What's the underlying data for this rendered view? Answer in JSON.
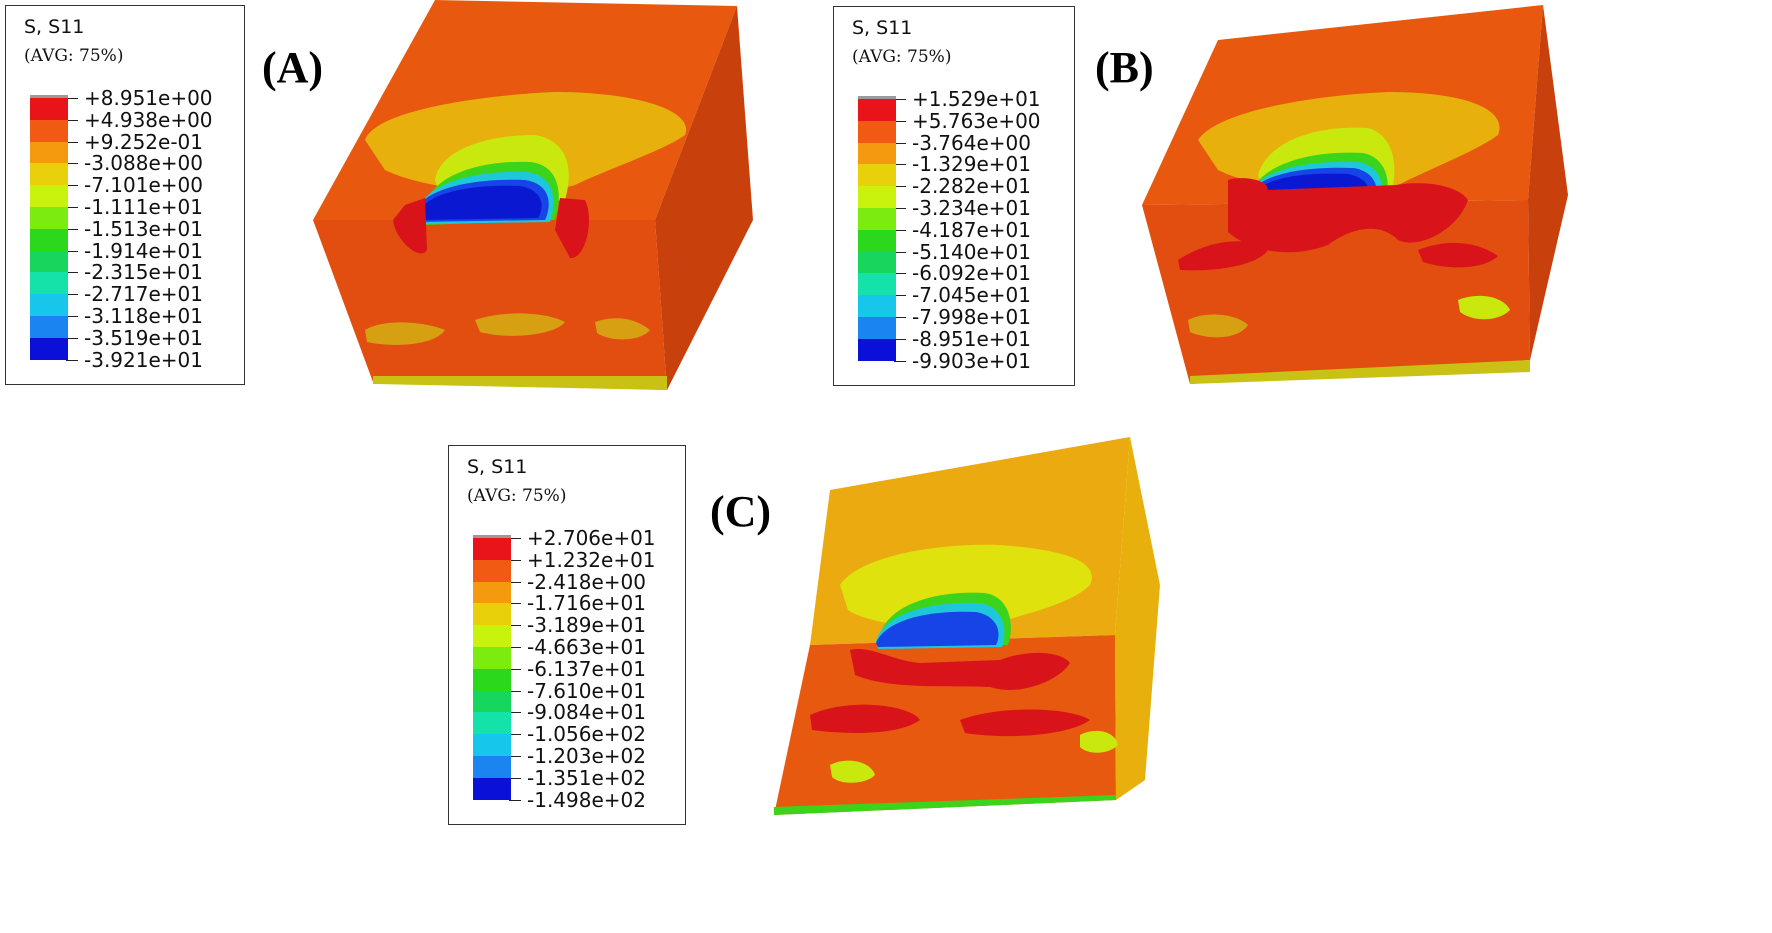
{
  "panels": [
    {
      "id": "A",
      "label": "(A)",
      "legend": {
        "title": "S, S11",
        "subtitle": "(AVG: 75%)",
        "values": [
          "+8.951e+00",
          "+4.938e+00",
          "+9.252e-01",
          "-3.088e+00",
          "-7.101e+00",
          "-1.111e+01",
          "-1.513e+01",
          "-1.914e+01",
          "-2.315e+01",
          "-2.717e+01",
          "-3.118e+01",
          "-3.519e+01",
          "-3.921e+01"
        ],
        "colors": [
          "#E8141A",
          "#F05A12",
          "#F59A0E",
          "#E8D10A",
          "#C9F20C",
          "#7CEB10",
          "#2CD81C",
          "#17D65E",
          "#14E2A9",
          "#17C6EB",
          "#1A84F0",
          "#1A3DEF",
          "#0B10D9"
        ]
      }
    },
    {
      "id": "B",
      "label": "(B)",
      "legend": {
        "title": "S, S11",
        "subtitle": "(AVG: 75%)",
        "values": [
          "+1.529e+01",
          "+5.763e+00",
          "-3.764e+00",
          "-1.329e+01",
          "-2.282e+01",
          "-3.234e+01",
          "-4.187e+01",
          "-5.140e+01",
          "-6.092e+01",
          "-7.045e+01",
          "-7.998e+01",
          "-8.951e+01",
          "-9.903e+01"
        ],
        "colors": [
          "#E8141A",
          "#F05A12",
          "#F59A0E",
          "#E8D10A",
          "#C9F20C",
          "#7CEB10",
          "#2CD81C",
          "#17D65E",
          "#14E2A9",
          "#17C6EB",
          "#1A84F0",
          "#1A3DEF",
          "#0B10D9"
        ]
      }
    },
    {
      "id": "C",
      "label": "(C)",
      "legend": {
        "title": "S, S11",
        "subtitle": "(AVG: 75%)",
        "values": [
          "+2.706e+01",
          "+1.232e+01",
          "-2.418e+00",
          "-1.716e+01",
          "-3.189e+01",
          "-4.663e+01",
          "-6.137e+01",
          "-7.610e+01",
          "-9.084e+01",
          "-1.056e+02",
          "-1.203e+02",
          "-1.351e+02",
          "-1.498e+02"
        ],
        "colors": [
          "#E8141A",
          "#F05A12",
          "#F59A0E",
          "#E8D10A",
          "#C9F20C",
          "#7CEB10",
          "#2CD81C",
          "#17D65E",
          "#14E2A9",
          "#17C6EB",
          "#1A84F0",
          "#1A3DEF",
          "#0B10D9"
        ]
      }
    }
  ],
  "palette": {
    "cube_top_A": "#E8590F",
    "cube_front_A": "#E24E10",
    "cube_side_A": "#C8400C",
    "cube_top_C": "#EBAB10",
    "red": "#D8141A",
    "yellow": "#E8C20C",
    "yellowgreen": "#C9E90E",
    "green": "#3BD41B",
    "cyan": "#1EC8DA",
    "blue": "#1644E6",
    "deepblue": "#0A18D2"
  }
}
